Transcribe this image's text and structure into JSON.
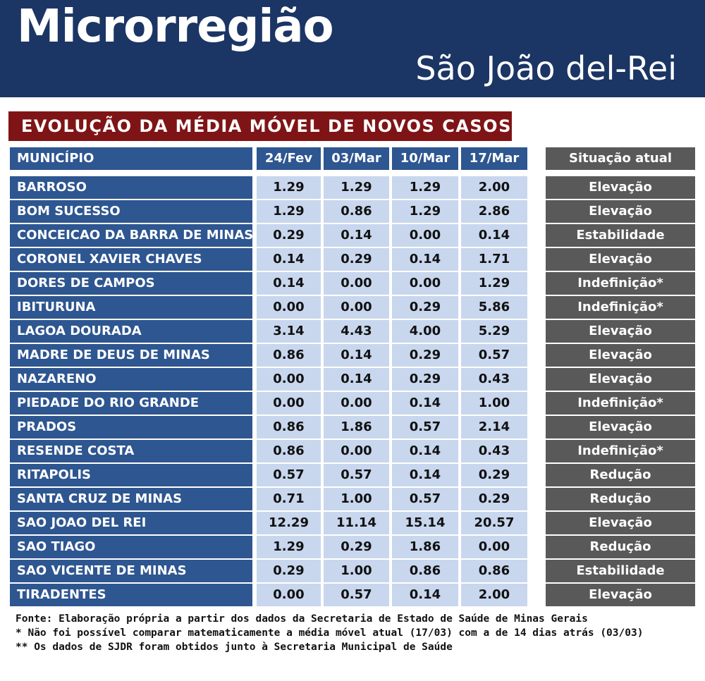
{
  "header": {
    "title": "Microrregião",
    "subtitle": "São João del-Rei"
  },
  "banner": "EVOLUÇÃO DA MÉDIA MÓVEL DE NOVOS CASOS",
  "table": {
    "columns": [
      "MUNICÍPIO",
      "24/Fev",
      "03/Mar",
      "10/Mar",
      "17/Mar",
      "Situação atual"
    ],
    "rows": [
      {
        "municipio": "BARROSO",
        "v": [
          "1.29",
          "1.29",
          "1.29",
          "2.00"
        ],
        "situacao": "Elevação"
      },
      {
        "municipio": "BOM SUCESSO",
        "v": [
          "1.29",
          "0.86",
          "1.29",
          "2.86"
        ],
        "situacao": "Elevação"
      },
      {
        "municipio": "CONCEICAO DA BARRA DE MINAS",
        "v": [
          "0.29",
          "0.14",
          "0.00",
          "0.14"
        ],
        "situacao": "Estabilidade"
      },
      {
        "municipio": "CORONEL XAVIER CHAVES",
        "v": [
          "0.14",
          "0.29",
          "0.14",
          "1.71"
        ],
        "situacao": "Elevação"
      },
      {
        "municipio": "DORES DE CAMPOS",
        "v": [
          "0.14",
          "0.00",
          "0.00",
          "1.29"
        ],
        "situacao": "Indefinição*"
      },
      {
        "municipio": "IBITURUNA",
        "v": [
          "0.00",
          "0.00",
          "0.29",
          "5.86"
        ],
        "situacao": "Indefinição*"
      },
      {
        "municipio": "LAGOA DOURADA",
        "v": [
          "3.14",
          "4.43",
          "4.00",
          "5.29"
        ],
        "situacao": "Elevação"
      },
      {
        "municipio": "MADRE DE DEUS DE MINAS",
        "v": [
          "0.86",
          "0.14",
          "0.29",
          "0.57"
        ],
        "situacao": "Elevação"
      },
      {
        "municipio": "NAZARENO",
        "v": [
          "0.00",
          "0.14",
          "0.29",
          "0.43"
        ],
        "situacao": "Elevação"
      },
      {
        "municipio": "PIEDADE DO RIO GRANDE",
        "v": [
          "0.00",
          "0.00",
          "0.14",
          "1.00"
        ],
        "situacao": "Indefinição*"
      },
      {
        "municipio": "PRADOS",
        "v": [
          "0.86",
          "1.86",
          "0.57",
          "2.14"
        ],
        "situacao": "Elevação"
      },
      {
        "municipio": "RESENDE COSTA",
        "v": [
          "0.86",
          "0.00",
          "0.14",
          "0.43"
        ],
        "situacao": "Indefinição*"
      },
      {
        "municipio": "RITAPOLIS",
        "v": [
          "0.57",
          "0.57",
          "0.14",
          "0.29"
        ],
        "situacao": "Redução"
      },
      {
        "municipio": "SANTA CRUZ DE MINAS",
        "v": [
          "0.71",
          "1.00",
          "0.57",
          "0.29"
        ],
        "situacao": "Redução"
      },
      {
        "municipio": "SAO JOAO DEL REI",
        "v": [
          "12.29",
          "11.14",
          "15.14",
          "20.57"
        ],
        "situacao": "Elevação"
      },
      {
        "municipio": "SAO TIAGO",
        "v": [
          "1.29",
          "0.29",
          "1.86",
          "0.00"
        ],
        "situacao": "Redução"
      },
      {
        "municipio": "SAO VICENTE DE MINAS",
        "v": [
          "0.29",
          "1.00",
          "0.86",
          "0.86"
        ],
        "situacao": "Estabilidade"
      },
      {
        "municipio": "TIRADENTES",
        "v": [
          "0.00",
          "0.57",
          "0.14",
          "2.00"
        ],
        "situacao": "Elevação"
      }
    ]
  },
  "footer": {
    "fonte": "Fonte: Elaboração própria a partir dos dados da Secretaria de Estado de Saúde de Minas Gerais",
    "nota1": "* Não foi possível comparar matematicamente a média móvel atual (17/03) com a de 14 dias atrás (03/03)",
    "nota2": "** Os dados de SJDR foram obtidos junto à Secretaria Municipal de Saúde"
  },
  "colors": {
    "header_bg": "#1b3564",
    "banner_bg": "#7f1416",
    "municipio_bg": "#2e5690",
    "value_bg": "#c8d7ee",
    "situacao_bg": "#595959"
  }
}
